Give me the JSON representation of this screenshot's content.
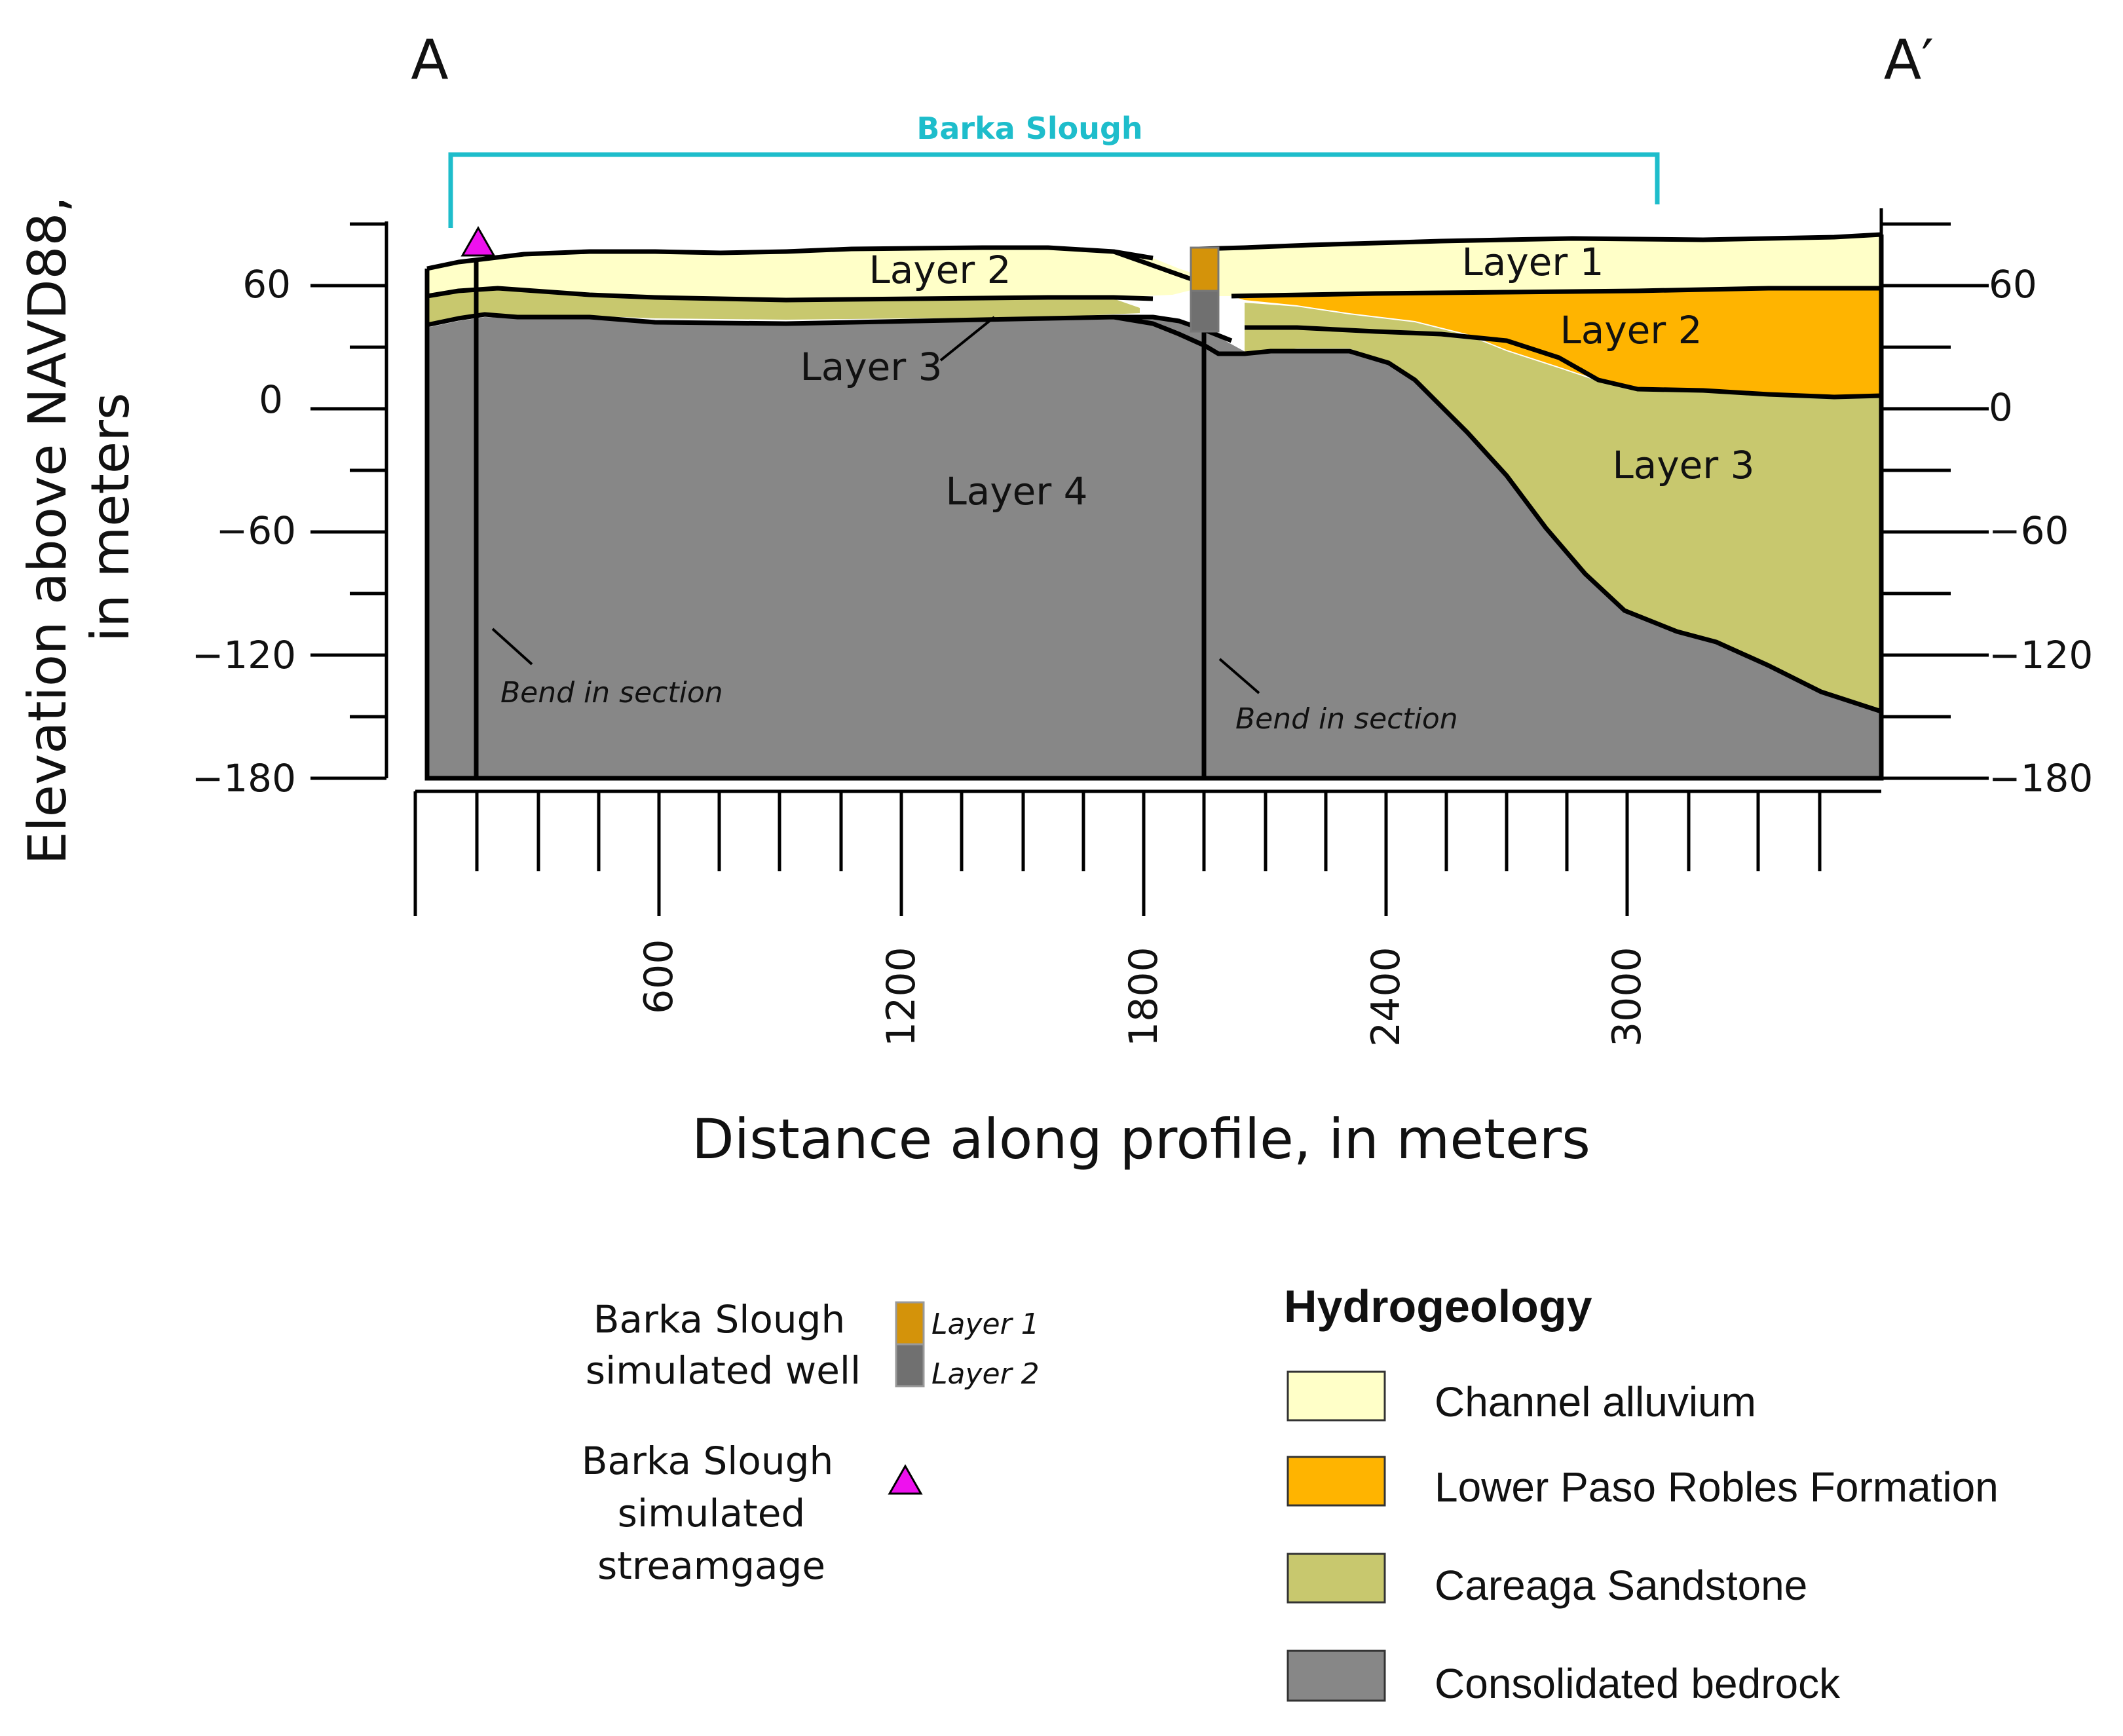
{
  "section": {
    "start_label": "A",
    "end_label": "A′",
    "barka_slough_label": "Barka Slough",
    "bend_label_1": "Bend in section",
    "bend_label_2": "Bend in section"
  },
  "layers": {
    "left_layer2": "Layer 2",
    "left_layer3": "Layer 3",
    "left_layer4": "Layer 4",
    "right_layer1": "Layer 1",
    "right_layer2": "Layer 2",
    "right_layer3": "Layer 3"
  },
  "axes": {
    "ylabel_line1": "Elevation above NAVD88,",
    "ylabel_line2": "in meters",
    "xlabel": "Distance along profile, in meters",
    "y_ticks_left": [
      "60",
      "0",
      "−60",
      "−120",
      "−180"
    ],
    "y_ticks_right": [
      "60",
      "0",
      "−60",
      "−120",
      "−180"
    ],
    "x_ticks": [
      "600",
      "1200",
      "1800",
      "2400",
      "3000"
    ]
  },
  "legend_symbols": {
    "well_label_line1": "Barka Slough",
    "well_label_line2": "simulated well",
    "well_layer1": "Layer 1",
    "well_layer2": "Layer 2",
    "gage_label_line1": "Barka Slough",
    "gage_label_line2": "simulated",
    "gage_label_line3": "streamgage"
  },
  "legend_hydro": {
    "title": "Hydrogeology",
    "items": [
      {
        "label": "Channel alluvium",
        "color": "#FFFFC8"
      },
      {
        "label": "Lower Paso Robles Formation",
        "color": "#FFB400"
      },
      {
        "label": "Careaga Sandstone",
        "color": "#C8C86E"
      },
      {
        "label": "Consolidated bedrock",
        "color": "#878787"
      }
    ]
  },
  "colors": {
    "barka_slough_accent": "#1EBDCB",
    "streamgage": "#EE11EE",
    "well_layer1": "#D4930A",
    "well_layer2": "#707070"
  }
}
